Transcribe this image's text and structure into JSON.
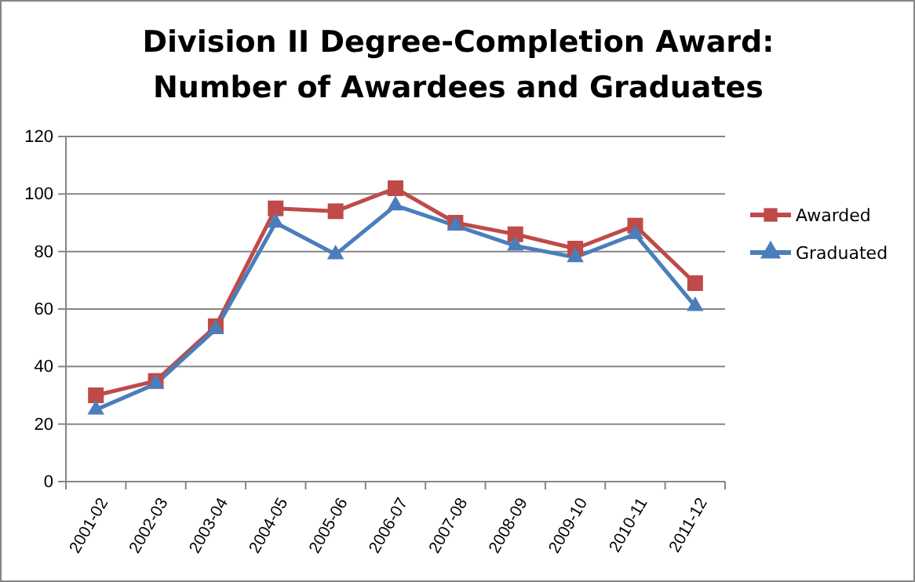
{
  "chart_data": {
    "type": "line",
    "title": "Division II Degree-Completion Award:\nNumber of Awardees and Graduates",
    "categories": [
      "2001-02",
      "2002-03",
      "2003-04",
      "2004-05",
      "2005-06",
      "2006-07",
      "2007-08",
      "2008-09",
      "2009-10",
      "2010-11",
      "2011-12"
    ],
    "series": [
      {
        "name": "Awarded",
        "color": "#be4b48",
        "marker": "square",
        "values": [
          30,
          35,
          54,
          95,
          94,
          102,
          90,
          86,
          81,
          89,
          69
        ]
      },
      {
        "name": "Graduated",
        "color": "#4a7ebb",
        "marker": "triangle",
        "values": [
          25,
          34,
          53,
          90,
          79,
          96,
          89,
          82,
          78,
          86,
          61
        ]
      }
    ],
    "ylim": [
      0,
      120
    ],
    "yticks": [
      0,
      20,
      40,
      60,
      80,
      100,
      120
    ],
    "grid": "y",
    "legend": "right",
    "line_style": "solid"
  }
}
